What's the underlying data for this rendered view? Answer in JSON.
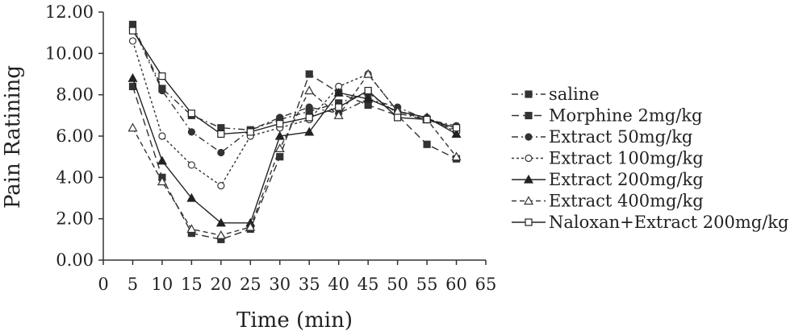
{
  "chart_data": {
    "type": "line",
    "title": "",
    "xlabel": "Time (min)",
    "ylabel": "Pain Ratining",
    "xlim": [
      0,
      65
    ],
    "ylim": [
      0,
      12
    ],
    "xticks": [
      "0",
      "5",
      "10",
      "15",
      "20",
      "25",
      "30",
      "35",
      "40",
      "45",
      "50",
      "55",
      "60",
      "65"
    ],
    "yticks": [
      "0.00",
      "2.00",
      "4.00",
      "6.00",
      "8.00",
      "10.00",
      "12.00"
    ],
    "x": [
      5,
      10,
      15,
      20,
      25,
      30,
      35,
      40,
      45,
      50,
      55,
      60
    ],
    "grid": false,
    "legend_position": "right",
    "series": [
      {
        "name": "saline",
        "marker": "square-filled",
        "dash": "8,4,2,4",
        "color": "#333333",
        "values": [
          11.4,
          8.3,
          7.0,
          6.4,
          6.3,
          6.8,
          7.2,
          7.6,
          8.1,
          7.1,
          6.8,
          6.3
        ]
      },
      {
        "name": "Morphine 2mg/kg",
        "marker": "square-filled",
        "dash": "9,5",
        "color": "#333333",
        "values": [
          8.4,
          4.0,
          1.3,
          1.0,
          1.5,
          5.0,
          9.0,
          8.1,
          7.5,
          7.0,
          5.6,
          4.9
        ]
      },
      {
        "name": "Extract 50mg/kg",
        "marker": "circle-filled",
        "dash": "8,4,2,4",
        "color": "#333333",
        "values": [
          11.3,
          8.2,
          6.2,
          5.2,
          6.3,
          6.9,
          7.4,
          7.1,
          7.8,
          7.4,
          6.8,
          6.5
        ]
      },
      {
        "name": "Extract 100mg/kg",
        "marker": "circle-open",
        "dash": "3,3",
        "color": "#333333",
        "values": [
          10.6,
          6.0,
          4.6,
          3.6,
          6.0,
          6.4,
          6.8,
          8.4,
          9.0,
          7.2,
          6.9,
          6.2
        ]
      },
      {
        "name": "Extract 200mg/kg",
        "marker": "triangle-filled",
        "dash": "",
        "color": "#222222",
        "values": [
          8.8,
          4.8,
          3.0,
          1.8,
          1.8,
          6.0,
          6.2,
          8.1,
          7.8,
          7.2,
          6.9,
          6.1
        ]
      },
      {
        "name": "Extract 400mg/kg",
        "marker": "triangle-open",
        "dash": "6,4",
        "color": "#333333",
        "values": [
          6.4,
          3.8,
          1.5,
          1.2,
          1.6,
          5.4,
          8.2,
          7.0,
          9.0,
          7.2,
          6.8,
          5.0
        ]
      },
      {
        "name": "Naloxan+Extract 200mg/kg",
        "marker": "square-open",
        "dash": "",
        "color": "#222222",
        "values": [
          11.1,
          8.9,
          7.1,
          6.1,
          6.2,
          6.6,
          6.9,
          7.4,
          8.2,
          6.9,
          6.8,
          6.4
        ]
      }
    ]
  }
}
